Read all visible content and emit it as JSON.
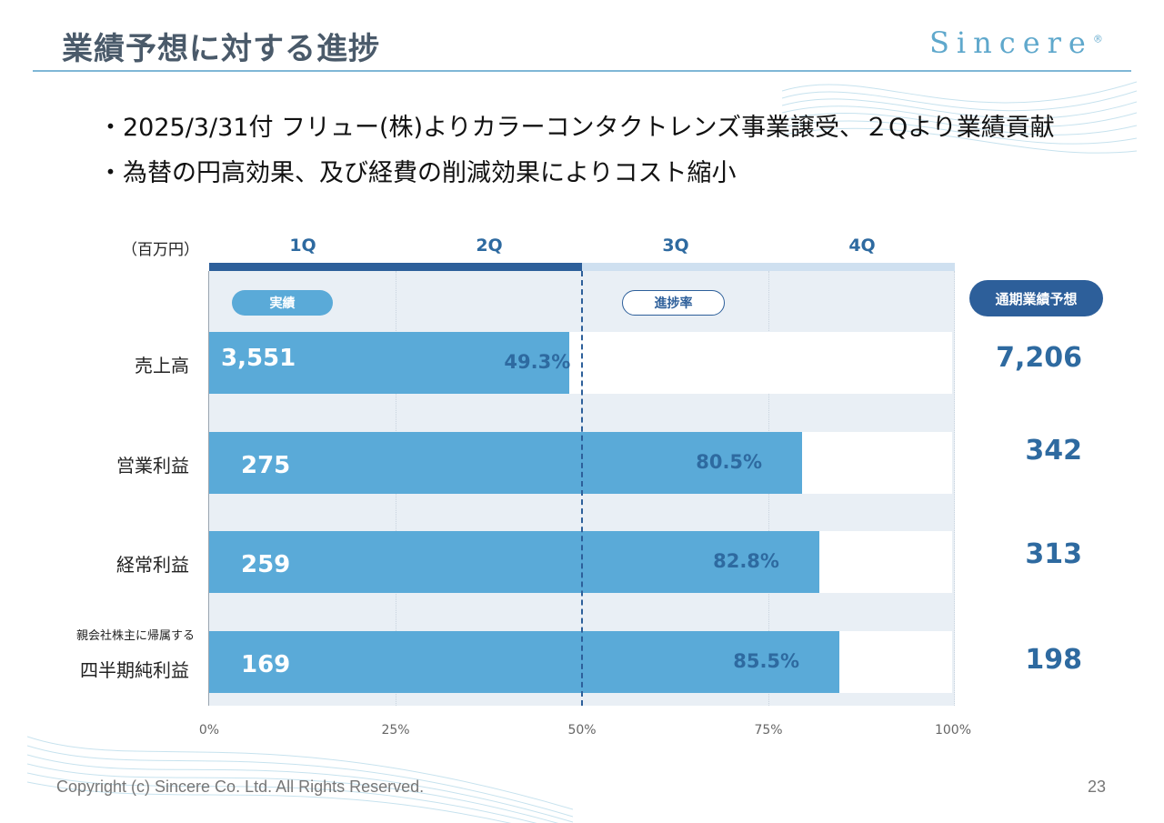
{
  "slide": {
    "title": "業績予想に対する進捗",
    "logo": "Sincere",
    "logo_mark": "®",
    "bullets": [
      "・2025/3/31付 フリュー(株)よりカラーコンタクトレンズ事業譲受、２Qより業績貢献",
      "・為替の円高効果、及び経費の削減効果によりコスト縮小"
    ],
    "footer": "Copyright (c) Sincere Co. Ltd. All Rights Reserved.",
    "page_number": "23"
  },
  "chart_data": {
    "type": "bar",
    "orientation": "horizontal",
    "unit_label": "（百万円）",
    "quarters": [
      "1Q",
      "2Q",
      "3Q",
      "4Q"
    ],
    "legend": {
      "actual": "実績",
      "progress": "進捗率",
      "forecast": "通期業績予想"
    },
    "xticks": [
      "0%",
      "25%",
      "50%",
      "75%",
      "100%"
    ],
    "xlim": [
      0,
      100
    ],
    "categories": [
      {
        "label": "売上高",
        "sublabel": "",
        "actual": "3,551",
        "progress": 49.3,
        "progress_label": "49.3%",
        "forecast": "7,206"
      },
      {
        "label": "営業利益",
        "sublabel": "",
        "actual": "275",
        "progress": 80.5,
        "progress_label": "80.5%",
        "forecast": "342"
      },
      {
        "label": "経常利益",
        "sublabel": "",
        "actual": "259",
        "progress": 82.8,
        "progress_label": "82.8%",
        "forecast": "313"
      },
      {
        "label": "四半期純利益",
        "sublabel": "親会社株主に帰属する",
        "actual": "169",
        "progress": 85.5,
        "progress_label": "85.5%",
        "forecast": "198"
      }
    ],
    "colors": {
      "bar": "#5aaad8",
      "accent": "#2d5f9a",
      "plot_bg": "#e9eff5"
    }
  }
}
